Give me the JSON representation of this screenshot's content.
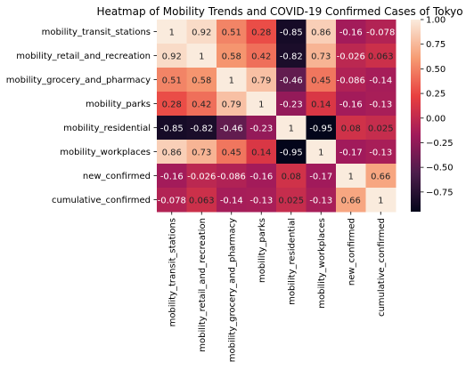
{
  "chart_data": {
    "type": "heatmap",
    "title": "Heatmap of Mobility Trends and COVID-19 Confirmed Cases of Tokyo",
    "row_labels": [
      "mobility_transit_stations",
      "mobility_retail_and_recreation",
      "mobility_grocery_and_pharmacy",
      "mobility_parks",
      "mobility_residential",
      "mobility_workplaces",
      "new_confirmed",
      "cumulative_confirmed"
    ],
    "col_labels": [
      "mobility_transit_stations",
      "mobility_retail_and_recreation",
      "mobility_grocery_and_pharmacy",
      "mobility_parks",
      "mobility_residential",
      "mobility_workplaces",
      "new_confirmed",
      "cumulative_confirmed"
    ],
    "values": [
      [
        1,
        0.92,
        0.51,
        0.28,
        -0.85,
        0.86,
        -0.16,
        -0.078
      ],
      [
        0.92,
        1,
        0.58,
        0.42,
        -0.82,
        0.73,
        -0.026,
        0.063
      ],
      [
        0.51,
        0.58,
        1,
        0.79,
        -0.46,
        0.45,
        -0.086,
        -0.14
      ],
      [
        0.28,
        0.42,
        0.79,
        1,
        -0.23,
        0.14,
        -0.16,
        -0.13
      ],
      [
        -0.85,
        -0.82,
        -0.46,
        -0.23,
        1,
        -0.95,
        0.08,
        0.025
      ],
      [
        0.86,
        0.73,
        0.45,
        0.14,
        -0.95,
        1,
        -0.17,
        -0.13
      ],
      [
        -0.16,
        -0.026,
        -0.086,
        -0.16,
        0.08,
        -0.17,
        1,
        0.66
      ],
      [
        -0.078,
        0.063,
        -0.14,
        -0.13,
        0.025,
        -0.13,
        0.66,
        1
      ]
    ],
    "cell_labels": [
      [
        "1",
        "0.92",
        "0.51",
        "0.28",
        "-0.85",
        "0.86",
        "-0.16",
        "-0.078"
      ],
      [
        "0.92",
        "1",
        "0.58",
        "0.42",
        "-0.82",
        "0.73",
        "-0.026",
        "0.063"
      ],
      [
        "0.51",
        "0.58",
        "1",
        "0.79",
        "-0.46",
        "0.45",
        "-0.086",
        "-0.14"
      ],
      [
        "0.28",
        "0.42",
        "0.79",
        "1",
        "-0.23",
        "0.14",
        "-0.16",
        "-0.13"
      ],
      [
        "-0.85",
        "-0.82",
        "-0.46",
        "-0.23",
        "1",
        "-0.95",
        "0.08",
        "0.025"
      ],
      [
        "0.86",
        "0.73",
        "0.45",
        "0.14",
        "-0.95",
        "1",
        "-0.17",
        "-0.13"
      ],
      [
        "-0.16",
        "-0.026",
        "-0.086",
        "-0.16",
        "0.08",
        "-0.17",
        "1",
        "0.66"
      ],
      [
        "-0.078",
        "0.063",
        "-0.14",
        "-0.13",
        "0.025",
        "-0.13",
        "0.66",
        "1"
      ]
    ],
    "colorbar": {
      "range": [
        -0.95,
        1.0
      ],
      "ticks": [
        1.0,
        0.75,
        0.5,
        0.25,
        0.0,
        -0.25,
        -0.5,
        -0.75
      ],
      "tick_labels": [
        "1.00",
        "0.75",
        "0.50",
        "0.25",
        "0.00",
        "−0.25",
        "−0.50",
        "−0.75"
      ],
      "colormap": [
        "#03051a",
        "#4c1d4b",
        "#a11a5b",
        "#e83f3f",
        "#f69c73",
        "#faebdd"
      ]
    },
    "xlabel": "",
    "ylabel": "",
    "grid": false,
    "legend": "colorbar-right"
  }
}
